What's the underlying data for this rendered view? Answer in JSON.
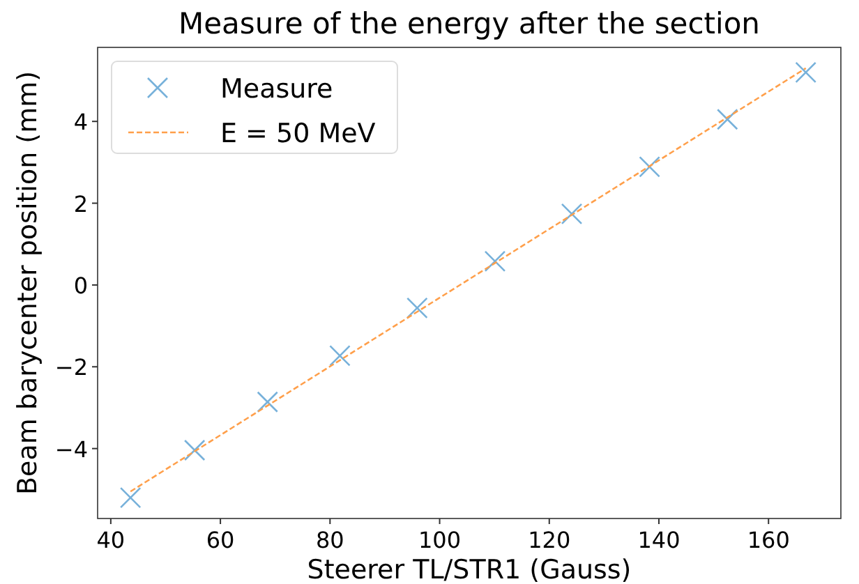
{
  "chart_data": {
    "type": "scatter",
    "title": "Measure of the energy after the section",
    "xlabel": "Steerer TL/STR1 (Gauss)",
    "ylabel": "Beam barycenter position (mm)",
    "xlim": [
      37.6,
      173.2
    ],
    "xticks": [
      40,
      60,
      80,
      100,
      120,
      140,
      160
    ],
    "ylim": [
      -5.71,
      5.81
    ],
    "yticks": [
      {
        "value": -4,
        "label": "−4"
      },
      {
        "value": -2,
        "label": "−2"
      },
      0,
      2,
      4
    ],
    "grid": false,
    "legend": "top left",
    "series": [
      {
        "name": "Measure",
        "marker": "cross",
        "color": "#77b1da",
        "x": [
          43.6,
          55.3,
          68.6,
          81.8,
          95.9,
          110.1,
          124.1,
          138.3,
          152.5,
          166.8
        ],
        "values": [
          -5.2,
          -4.04,
          -2.86,
          -1.73,
          -0.56,
          0.58,
          1.74,
          2.89,
          4.05,
          5.2
        ]
      },
      {
        "name": "E = 50 MeV",
        "type": "line",
        "marker": "none",
        "line_style": "dashed",
        "color": "#ff9f4a",
        "x": [
          43.6,
          166.8
        ],
        "values": [
          -5.05,
          5.3
        ]
      }
    ]
  }
}
